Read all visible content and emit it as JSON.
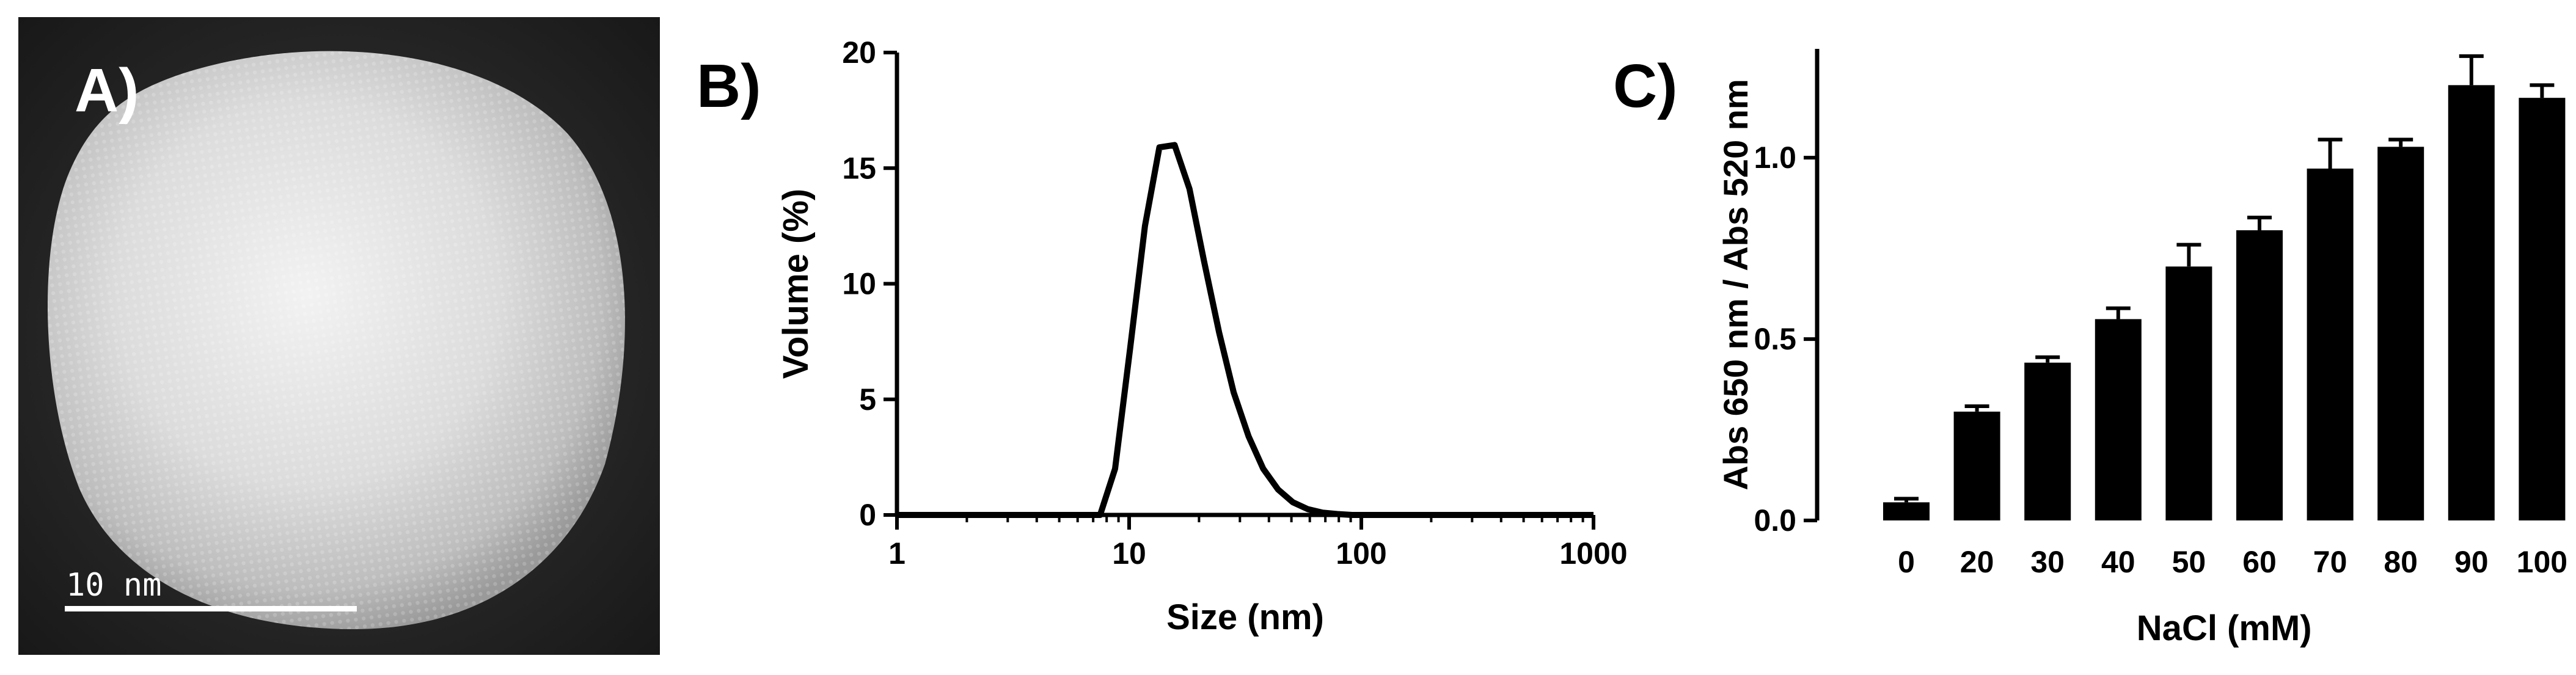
{
  "panels": {
    "a": {
      "letter": "A)",
      "scale_bar_label": "10 nm"
    },
    "b": {
      "letter": "B)"
    },
    "c": {
      "letter": "C)"
    }
  },
  "chart_data": [
    {
      "type": "line",
      "x_scale": "log",
      "xlabel": "Size (nm)",
      "ylabel": "Volume (%)",
      "xlim": [
        1,
        1000
      ],
      "ylim": [
        0,
        20
      ],
      "x_ticks": [
        1,
        10,
        100,
        1000
      ],
      "x_tick_labels": [
        "1",
        "10",
        "100",
        "1000"
      ],
      "y_ticks": [
        0,
        5,
        10,
        15,
        20
      ],
      "y_tick_labels": [
        "0",
        "5",
        "10",
        "15",
        "20"
      ],
      "grid": false,
      "series": [
        {
          "x": [
            1,
            7.5,
            8.7,
            10.1,
            11.7,
            13.5,
            15.7,
            18.2,
            21.0,
            24.4,
            28.2,
            32.7,
            37.8,
            43.8,
            50.7,
            58.8,
            68.1,
            78.8,
            91.3,
            1000
          ],
          "y": [
            0,
            0,
            2.0,
            7.2,
            12.5,
            15.9,
            16.0,
            14.1,
            11.0,
            7.9,
            5.3,
            3.4,
            2.0,
            1.1,
            0.55,
            0.25,
            0.1,
            0.04,
            0,
            0
          ]
        }
      ]
    },
    {
      "type": "bar",
      "xlabel": "NaCl (mM)",
      "ylabel": "Abs 650 nm / Abs 520 nm",
      "categories": [
        "0",
        "20",
        "30",
        "40",
        "50",
        "60",
        "70",
        "80",
        "90",
        "100"
      ],
      "values": [
        0.05,
        0.3,
        0.435,
        0.555,
        0.7,
        0.8,
        0.97,
        1.03,
        1.2,
        1.165
      ],
      "errors": [
        0.01,
        0.015,
        0.015,
        0.03,
        0.06,
        0.035,
        0.08,
        0.02,
        0.08,
        0.035
      ],
      "ylim": [
        0,
        1.3
      ],
      "y_ticks": [
        0.0,
        0.5,
        1.0
      ],
      "y_tick_labels": [
        "0.0",
        "0.5",
        "1.0"
      ],
      "grid": false,
      "bar_color": "#000000"
    }
  ]
}
